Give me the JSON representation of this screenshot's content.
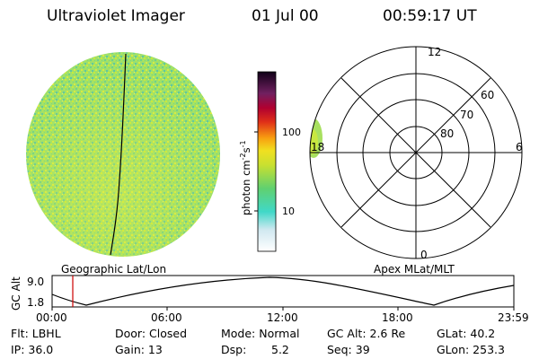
{
  "header": {
    "title": "Ultraviolet Imager",
    "date": "01 Jul 00",
    "time": "00:59:17 UT"
  },
  "left_panel": {
    "caption": "Geographic Lat/Lon"
  },
  "right_panel": {
    "caption": "Apex MLat/MLT",
    "mlt_labels": [
      "12",
      "18",
      "6",
      "0"
    ],
    "mlat_labels": [
      "60",
      "70",
      "80"
    ]
  },
  "colorbar": {
    "unit_label": "photon cm",
    "unit_exp1": "-2",
    "unit_s": "s",
    "unit_exp2": "-1",
    "scale": "log",
    "ticks": [
      "100",
      "10"
    ]
  },
  "timeline": {
    "ylabel": "GC Alt",
    "y_ticks": [
      "9.0",
      "1.8"
    ],
    "x_ticks": [
      "00:00",
      "06:00",
      "12:00",
      "18:00",
      "23:59"
    ],
    "current_marker_time": "00:59",
    "marker_color": "#cc0000"
  },
  "info": {
    "flt": "Flt: LBHL",
    "ip": "IP: 36.0",
    "door": "Door: Closed",
    "gain": "Gain: 13",
    "mode": "Mode: Normal",
    "dsp_label": "Dsp:",
    "dsp_value": "5.2",
    "gcalt": "GC Alt: 2.6 Re",
    "seq": "Seq: 39",
    "glat": "GLat:  40.2",
    "glon": "GLon: 253.3"
  }
}
